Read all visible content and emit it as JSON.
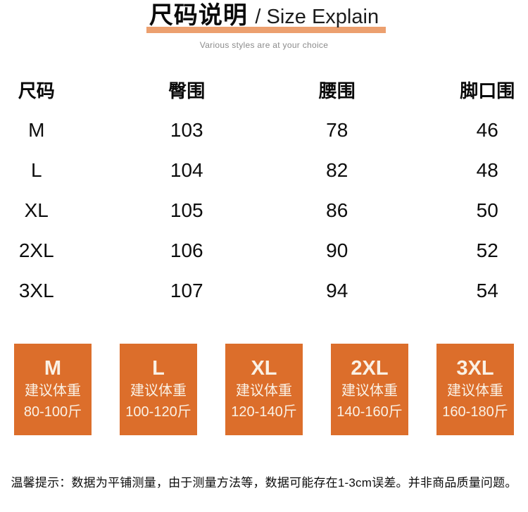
{
  "header": {
    "title_cn": "尺码说明",
    "title_en": "/ Size Explain",
    "subtitle": "Various styles are at your choice"
  },
  "table": {
    "headers": [
      "尺码",
      "臀围",
      "腰围",
      "脚口围"
    ],
    "rows": [
      {
        "size": "M",
        "hip": "103",
        "waist": "78",
        "leg": "46"
      },
      {
        "size": "L",
        "hip": "104",
        "waist": "82",
        "leg": "48"
      },
      {
        "size": "XL",
        "hip": "105",
        "waist": "86",
        "leg": "50"
      },
      {
        "size": "2XL",
        "hip": "106",
        "waist": "90",
        "leg": "52"
      },
      {
        "size": "3XL",
        "hip": "107",
        "waist": "94",
        "leg": "54"
      }
    ]
  },
  "cards": [
    {
      "size": "M",
      "label": "建议体重",
      "range": "80-100斤"
    },
    {
      "size": "L",
      "label": "建议体重",
      "range": "100-120斤"
    },
    {
      "size": "XL",
      "label": "建议体重",
      "range": "120-140斤"
    },
    {
      "size": "2XL",
      "label": "建议体重",
      "range": "140-160斤"
    },
    {
      "size": "3XL",
      "label": "建议体重",
      "range": "160-180斤"
    }
  ],
  "footer": {
    "note": "温馨提示：数据为平铺测量，由于测量方法等，数据可能存在1-3cm误差。并非商品质量问题。"
  },
  "colors": {
    "accent_orange": "#DC6E2B",
    "underline_peach": "#ECA06F",
    "card_text_cream": "#FAF1E5"
  }
}
